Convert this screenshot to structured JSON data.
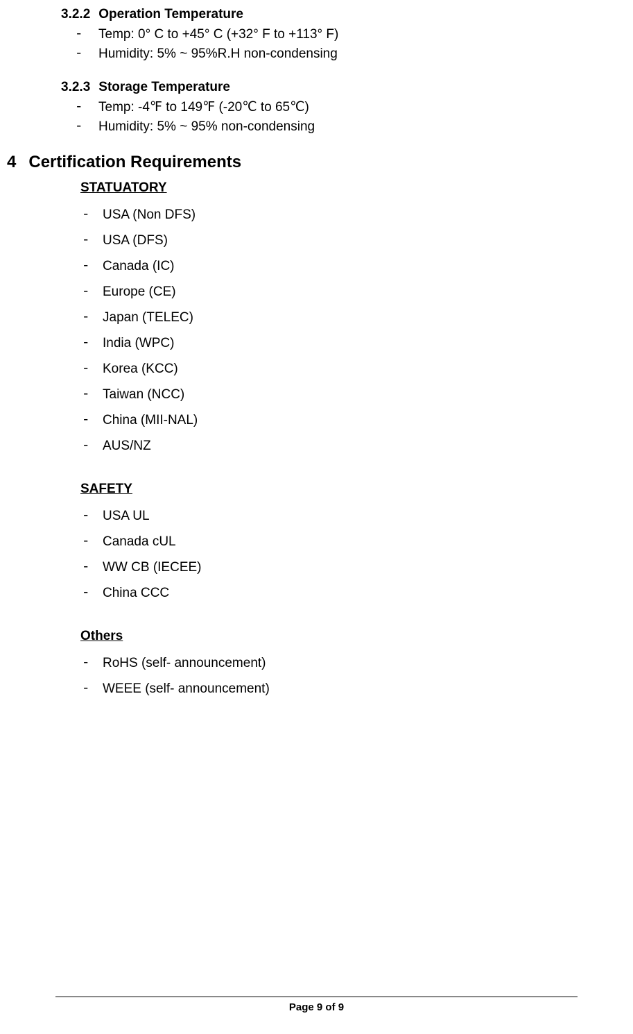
{
  "section_322": {
    "number": "3.2.2",
    "title": "Operation Temperature",
    "items": [
      "Temp: 0° C to +45° C (+32° F to +113° F)",
      "Humidity: 5% ~ 95%R.H non-condensing"
    ]
  },
  "section_323": {
    "number": "3.2.3",
    "title": "Storage Temperature",
    "items": [
      "Temp: -4℉ to 149℉ (-20℃ to 65℃)",
      "Humidity: 5% ~ 95% non-condensing"
    ]
  },
  "section_4": {
    "number": "4",
    "title": "Certification Requirements",
    "statutory": {
      "heading": "STATUATORY",
      "items": [
        "USA (Non DFS)",
        "USA (DFS)",
        "Canada (IC)",
        "Europe (CE)",
        "Japan (TELEC)",
        "India (WPC)",
        "Korea (KCC)",
        "Taiwan (NCC)",
        "China (MII-NAL)",
        "AUS/NZ"
      ]
    },
    "safety": {
      "heading": "SAFETY",
      "items": [
        "USA UL",
        "Canada cUL",
        "WW CB (IECEE)",
        "China CCC"
      ]
    },
    "others": {
      "heading": "Others",
      "items": [
        "RoHS (self- announcement)",
        "WEEE (self- announcement)"
      ]
    }
  },
  "footer": {
    "page_text": "Page 9 of 9"
  }
}
